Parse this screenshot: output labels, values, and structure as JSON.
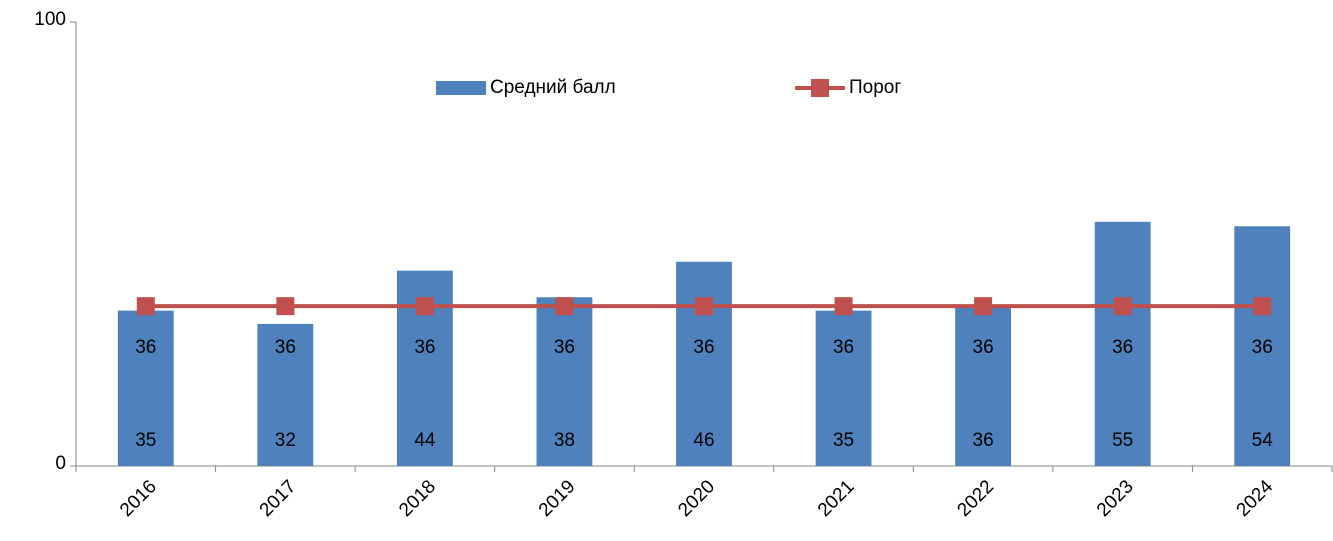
{
  "chart_data": {
    "type": "bar",
    "categories": [
      "2016",
      "2017",
      "2018",
      "2019",
      "2020",
      "2021",
      "2022",
      "2023",
      "2024"
    ],
    "series": [
      {
        "name": "Средний балл",
        "type": "bar",
        "color": "#4f81bd",
        "values": [
          35,
          32,
          44,
          38,
          46,
          35,
          36,
          55,
          54
        ]
      },
      {
        "name": "Порог",
        "type": "line",
        "color": "#c0504d",
        "values": [
          36,
          36,
          36,
          36,
          36,
          36,
          36,
          36,
          36
        ]
      }
    ],
    "ylim": [
      0,
      100
    ],
    "yticks": [
      0,
      100
    ],
    "grid": false,
    "legend": "top"
  }
}
